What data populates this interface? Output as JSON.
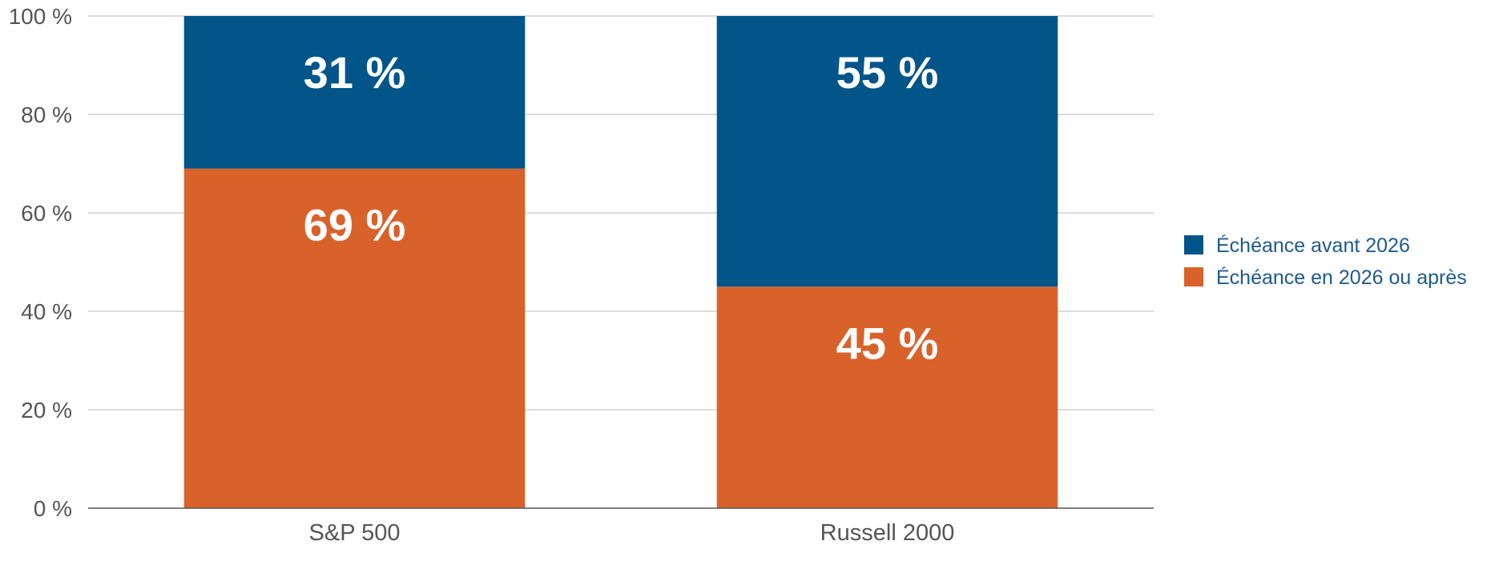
{
  "chart_data": {
    "type": "bar",
    "stacked": true,
    "categories": [
      "S&P 500",
      "Russell 2000"
    ],
    "series": [
      {
        "name": "Échéance en 2026 ou après",
        "values": [
          69,
          45
        ],
        "labels": [
          "69 %",
          "45 %"
        ],
        "color": "#d9622b"
      },
      {
        "name": "Échéance avant 2026",
        "values": [
          31,
          55
        ],
        "labels": [
          "31 %",
          "55 %"
        ],
        "color": "#025588"
      }
    ],
    "legend_order": [
      1,
      0
    ],
    "ylim": [
      0,
      100
    ],
    "yticks": [
      0,
      20,
      40,
      60,
      80,
      100
    ],
    "ytick_labels": [
      "0 %",
      "20 %",
      "40 %",
      "60 %",
      "80 %",
      "100 %"
    ],
    "grid": true,
    "legend_position": "right",
    "title": "",
    "xlabel": "",
    "ylabel": ""
  }
}
